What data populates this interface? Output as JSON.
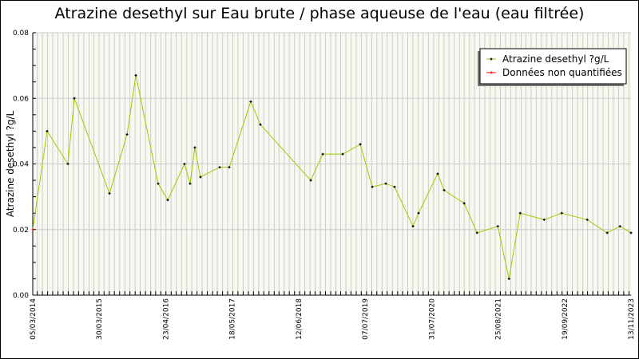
{
  "chart_data": {
    "type": "line",
    "title": "Atrazine desethyl sur Eau brute / phase aqueuse de l'eau (eau filtrée)",
    "ylabel": "Atrazine desethyl ?g/L",
    "xlabel": "",
    "ylim": [
      0,
      0.08
    ],
    "yticks": [
      "0.00",
      "0.02",
      "0.04",
      "0.06",
      "0.08"
    ],
    "xlim": [
      "2014-03-05",
      "2023-11-13"
    ],
    "xticks": [
      "05/03/2014",
      "30/03/2015",
      "23/04/2016",
      "18/05/2017",
      "12/06/2018",
      "07/07/2019",
      "31/07/2020",
      "25/08/2021",
      "19/09/2022",
      "13/11/2023"
    ],
    "grid": true,
    "legend_position": "top-right",
    "colors": {
      "line": "#99cc00",
      "marker": "#000000",
      "non_quantified": "#ff0000",
      "plot_bg": "#f8f8f0",
      "grid": "#cccccc"
    },
    "legend": [
      "Atrazine desethyl ?g/L",
      "Données non quantifiées"
    ],
    "series": [
      {
        "name": "Atrazine desethyl ?g/L",
        "points": [
          {
            "x": "2014-03-05",
            "y": 0.02,
            "non_quantified": true
          },
          {
            "x": "2014-05-29",
            "y": 0.05
          },
          {
            "x": "2014-09-29",
            "y": 0.04
          },
          {
            "x": "2014-11-06",
            "y": 0.06
          },
          {
            "x": "2015-06-02",
            "y": 0.031
          },
          {
            "x": "2015-09-14",
            "y": 0.049
          },
          {
            "x": "2015-11-05",
            "y": 0.067
          },
          {
            "x": "2016-03-16",
            "y": 0.034
          },
          {
            "x": "2016-05-12",
            "y": 0.029
          },
          {
            "x": "2016-08-19",
            "y": 0.04
          },
          {
            "x": "2016-09-21",
            "y": 0.034
          },
          {
            "x": "2016-10-19",
            "y": 0.045
          },
          {
            "x": "2016-11-21",
            "y": 0.036
          },
          {
            "x": "2017-03-15",
            "y": 0.039
          },
          {
            "x": "2017-05-11",
            "y": 0.039
          },
          {
            "x": "2017-09-15",
            "y": 0.059
          },
          {
            "x": "2017-11-11",
            "y": 0.052
          },
          {
            "x": "2018-09-05",
            "y": 0.035
          },
          {
            "x": "2018-11-15",
            "y": 0.043
          },
          {
            "x": "2019-03-13",
            "y": 0.043
          },
          {
            "x": "2019-06-25",
            "y": 0.046
          },
          {
            "x": "2019-09-04",
            "y": 0.033
          },
          {
            "x": "2019-11-23",
            "y": 0.034
          },
          {
            "x": "2020-01-14",
            "y": 0.033
          },
          {
            "x": "2020-05-02",
            "y": 0.021
          },
          {
            "x": "2020-06-04",
            "y": 0.025
          },
          {
            "x": "2020-09-25",
            "y": 0.037
          },
          {
            "x": "2020-11-02",
            "y": 0.032
          },
          {
            "x": "2021-03-01",
            "y": 0.028
          },
          {
            "x": "2021-05-16",
            "y": 0.019
          },
          {
            "x": "2021-09-16",
            "y": 0.021
          },
          {
            "x": "2021-11-21",
            "y": 0.005
          },
          {
            "x": "2022-01-26",
            "y": 0.025
          },
          {
            "x": "2022-06-17",
            "y": 0.023
          },
          {
            "x": "2022-09-29",
            "y": 0.025
          },
          {
            "x": "2023-02-27",
            "y": 0.023
          },
          {
            "x": "2023-06-25",
            "y": 0.019
          },
          {
            "x": "2023-09-09",
            "y": 0.021
          },
          {
            "x": "2023-11-13",
            "y": 0.019
          }
        ]
      }
    ]
  }
}
